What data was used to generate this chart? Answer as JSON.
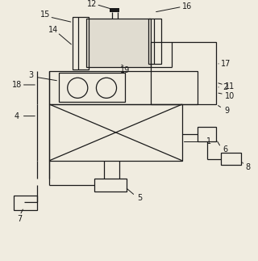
{
  "bg_color": "#f0ece0",
  "line_color": "#1a1a1a",
  "lw": 0.9,
  "fig_w": 3.2,
  "fig_h": 3.23,
  "dpi": 100
}
